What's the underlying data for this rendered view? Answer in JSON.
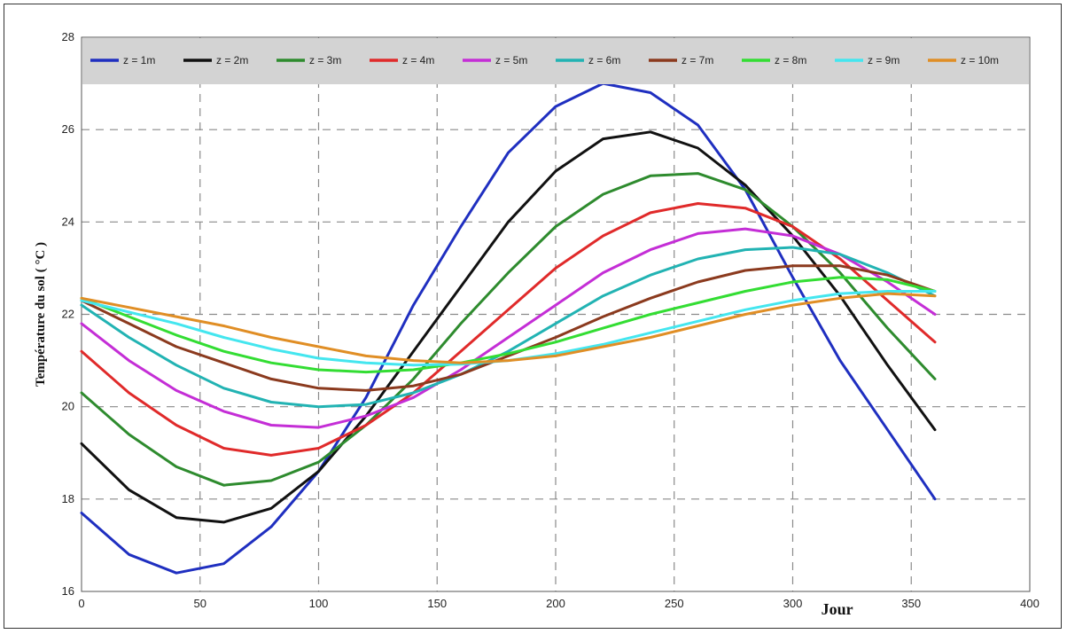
{
  "chart_data": {
    "type": "line",
    "title": "",
    "xlabel": "Jour",
    "ylabel": "Température du sol ( °C )",
    "xlim": [
      0,
      400
    ],
    "ylim": [
      16,
      28
    ],
    "xticks": [
      "0",
      "50",
      "100",
      "150",
      "200",
      "250",
      "300",
      "350",
      "400"
    ],
    "yticks": [
      "16",
      "18",
      "20",
      "22",
      "24",
      "26",
      "28"
    ],
    "grid": true,
    "legend_position": "top",
    "x": [
      0,
      20,
      40,
      60,
      80,
      100,
      120,
      140,
      160,
      180,
      200,
      220,
      240,
      260,
      280,
      300,
      320,
      340,
      360
    ],
    "series": [
      {
        "name": "z = 1m",
        "color": "#1f2fc0",
        "values": [
          17.7,
          16.8,
          16.4,
          16.6,
          17.4,
          18.6,
          20.2,
          22.2,
          23.9,
          25.5,
          26.5,
          27.0,
          26.8,
          26.1,
          24.7,
          22.8,
          21.0,
          19.5,
          18.0
        ]
      },
      {
        "name": "z = 2m",
        "color": "#111111",
        "values": [
          19.2,
          18.2,
          17.6,
          17.5,
          17.8,
          18.6,
          19.8,
          21.2,
          22.6,
          24.0,
          25.1,
          25.8,
          25.95,
          25.6,
          24.8,
          23.7,
          22.4,
          20.9,
          19.5
        ]
      },
      {
        "name": "z = 3m",
        "color": "#2e8b2e",
        "values": [
          20.3,
          19.4,
          18.7,
          18.3,
          18.4,
          18.8,
          19.6,
          20.6,
          21.8,
          22.9,
          23.9,
          24.6,
          25.0,
          25.05,
          24.7,
          23.9,
          22.9,
          21.7,
          20.6
        ]
      },
      {
        "name": "z = 4m",
        "color": "#e02a2a",
        "values": [
          21.2,
          20.3,
          19.6,
          19.1,
          18.95,
          19.1,
          19.6,
          20.3,
          21.2,
          22.1,
          23.0,
          23.7,
          24.2,
          24.4,
          24.3,
          23.9,
          23.2,
          22.3,
          21.4
        ]
      },
      {
        "name": "z = 5m",
        "color": "#c42ed6",
        "values": [
          21.8,
          21.0,
          20.35,
          19.9,
          19.6,
          19.55,
          19.8,
          20.2,
          20.8,
          21.5,
          22.2,
          22.9,
          23.4,
          23.75,
          23.85,
          23.7,
          23.3,
          22.7,
          22.0
        ]
      },
      {
        "name": "z = 6m",
        "color": "#22b3b3",
        "values": [
          22.2,
          21.5,
          20.9,
          20.4,
          20.1,
          20.0,
          20.05,
          20.3,
          20.7,
          21.2,
          21.8,
          22.4,
          22.85,
          23.2,
          23.4,
          23.45,
          23.3,
          22.9,
          22.4
        ]
      },
      {
        "name": "z = 7m",
        "color": "#8b3a1e",
        "values": [
          22.3,
          21.8,
          21.3,
          20.95,
          20.6,
          20.4,
          20.35,
          20.45,
          20.7,
          21.1,
          21.5,
          21.95,
          22.35,
          22.7,
          22.95,
          23.05,
          23.05,
          22.85,
          22.5
        ]
      },
      {
        "name": "z = 8m",
        "color": "#33dd33",
        "values": [
          22.35,
          21.95,
          21.55,
          21.2,
          20.95,
          20.8,
          20.75,
          20.8,
          20.95,
          21.15,
          21.4,
          21.7,
          22.0,
          22.25,
          22.5,
          22.7,
          22.8,
          22.75,
          22.5
        ]
      },
      {
        "name": "z = 9m",
        "color": "#44e6ef",
        "values": [
          22.3,
          22.05,
          21.8,
          21.5,
          21.25,
          21.05,
          20.95,
          20.9,
          20.92,
          21.0,
          21.15,
          21.35,
          21.6,
          21.85,
          22.1,
          22.3,
          22.45,
          22.5,
          22.5
        ]
      },
      {
        "name": "z = 10m",
        "color": "#e08e25",
        "values": [
          22.35,
          22.15,
          21.95,
          21.75,
          21.5,
          21.3,
          21.1,
          21.0,
          20.95,
          21.0,
          21.1,
          21.3,
          21.5,
          21.75,
          22.0,
          22.2,
          22.35,
          22.45,
          22.4
        ]
      }
    ]
  }
}
